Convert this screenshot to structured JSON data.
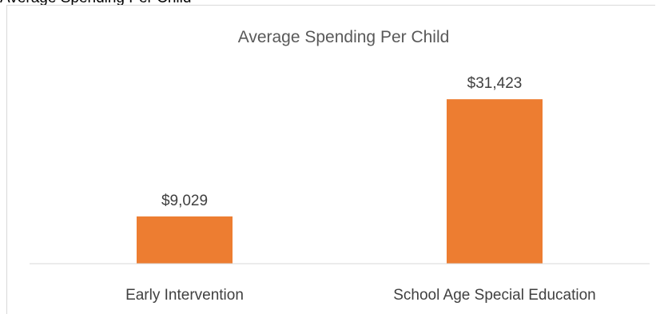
{
  "clipped_heading": "Average Spending Per Child",
  "chart_data": {
    "type": "bar",
    "title": "Average Spending Per Child",
    "categories": [
      "Early Intervention",
      "School Age Special Education"
    ],
    "values": [
      9029,
      31423
    ],
    "data_labels": [
      "$9,029",
      "$31,423"
    ],
    "xlabel": "",
    "ylabel": "",
    "ylim": [
      0,
      40000
    ],
    "grid": false,
    "legend": "none",
    "bar_color": "#ED7D31",
    "axis_color": "#D9D9D9"
  }
}
